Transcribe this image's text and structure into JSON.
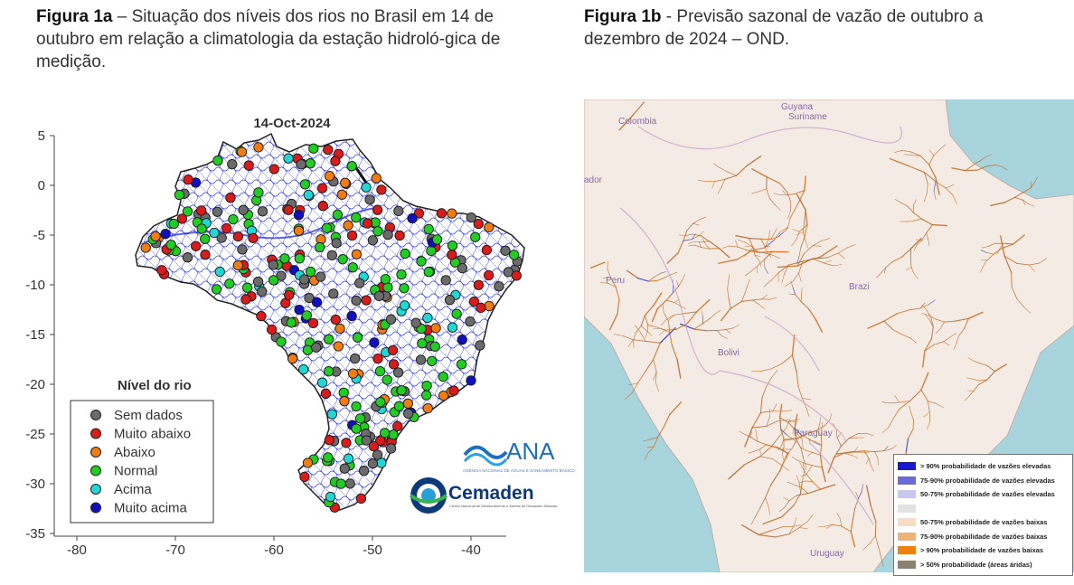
{
  "fig_a": {
    "caption_bold": "Figura 1a",
    "caption_text": " – Situação dos níveis dos rios no Brasil em 14 de outubro em relação a climatologia da estação hidroló-gica de medição.",
    "map_title": "14-Oct-2024",
    "x_ticks": [
      "-80",
      "-70",
      "-60",
      "-50",
      "-40"
    ],
    "y_ticks": [
      "5",
      "0",
      "-5",
      "-10",
      "-15",
      "-20",
      "-25",
      "-30",
      "-35"
    ],
    "legend_title": "Nível do rio",
    "legend_items": [
      {
        "label": "Sem dados",
        "color": "#6b6b6b"
      },
      {
        "label": "Muito abaixo",
        "color": "#d81b1b"
      },
      {
        "label": "Abaixo",
        "color": "#f07c12"
      },
      {
        "label": "Normal",
        "color": "#22cc22"
      },
      {
        "label": "Acima",
        "color": "#22d6d6"
      },
      {
        "label": "Muito acima",
        "color": "#1010c0"
      }
    ],
    "logo_ana": "ANA",
    "logo_ana_sub": "AGÊNCIA NACIONAL DE ÁGUAS E SANEAMENTO BÁSICO",
    "logo_cemaden": "Cemaden",
    "logo_cemaden_sub": "Centro Nacional de Monitoramento e Alertas de Desastres Naturais"
  },
  "fig_b": {
    "caption_bold": "Figura 1b",
    "caption_text": " - Previsão sazonal de vazão de outubro a dezembro de 2024 – OND.",
    "map_labels": {
      "guyana": "Guyana",
      "suriname": "Suriname",
      "colombia": "Colombia",
      "ador": "ador",
      "peru": "Peru",
      "brazil": "Brazi",
      "bolivia": "Bolivi",
      "paraguay": "Paraguay",
      "uruguay": "Uruguay"
    },
    "legend_items": [
      {
        "label": "> 90% probabilidade de vazões elevadas",
        "color": "#1a1acc"
      },
      {
        "label": "75-90% probabilidade de vazões elevadas",
        "color": "#6b6bd8"
      },
      {
        "label": "50-75% probabilidade de vazões elevadas",
        "color": "#c8c8ee"
      },
      {
        "label": "",
        "color": "#e2e2e2"
      },
      {
        "label": "50-75% probabilidade de vazões baixas",
        "color": "#f6dcc3"
      },
      {
        "label": "75-90% probabilidade de vazões baixas",
        "color": "#efb27a"
      },
      {
        "label": "> 90% probabilidade de vazões baixas",
        "color": "#ee8010"
      },
      {
        "label": "> 50% probabilidade (áreas áridas)",
        "color": "#8a7f70"
      }
    ]
  }
}
